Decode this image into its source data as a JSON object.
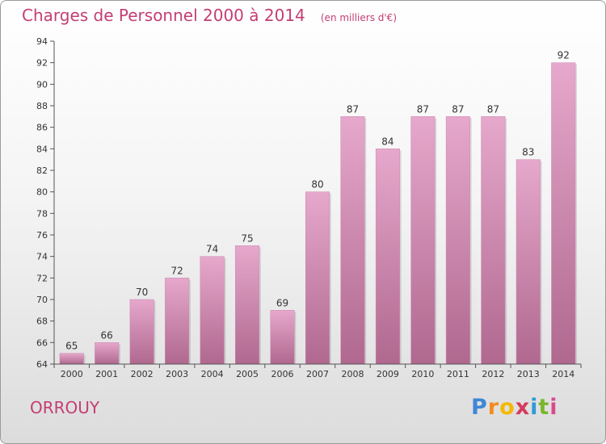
{
  "chart_data": {
    "type": "bar",
    "title": "Charges de Personnel 2000 à 2014",
    "unit": "(en milliers d'€)",
    "categories": [
      "2000",
      "2001",
      "2002",
      "2003",
      "2004",
      "2005",
      "2006",
      "2007",
      "2008",
      "2009",
      "2010",
      "2011",
      "2012",
      "2013",
      "2014"
    ],
    "values": [
      65,
      66,
      70,
      72,
      74,
      75,
      69,
      80,
      87,
      84,
      87,
      87,
      87,
      83,
      92
    ],
    "ylim": [
      64,
      94
    ],
    "yticks": [
      64,
      66,
      68,
      70,
      72,
      74,
      76,
      78,
      80,
      82,
      84,
      86,
      88,
      90,
      92,
      94
    ],
    "grid": false,
    "bar_color_top": "#e6a8cc",
    "bar_color_bottom": "#b0688f"
  },
  "commune": "ORROUY",
  "logo": {
    "letters": [
      "P",
      "r",
      "o",
      "x",
      "i",
      "t",
      "i"
    ],
    "colors": [
      "#3f87d6",
      "#f28b1e",
      "#f5b800",
      "#d53a5c",
      "#2e9bd6",
      "#7ab52c",
      "#d84a8c"
    ]
  },
  "colors": {
    "accent": "#c43e73",
    "axis": "#555555"
  }
}
